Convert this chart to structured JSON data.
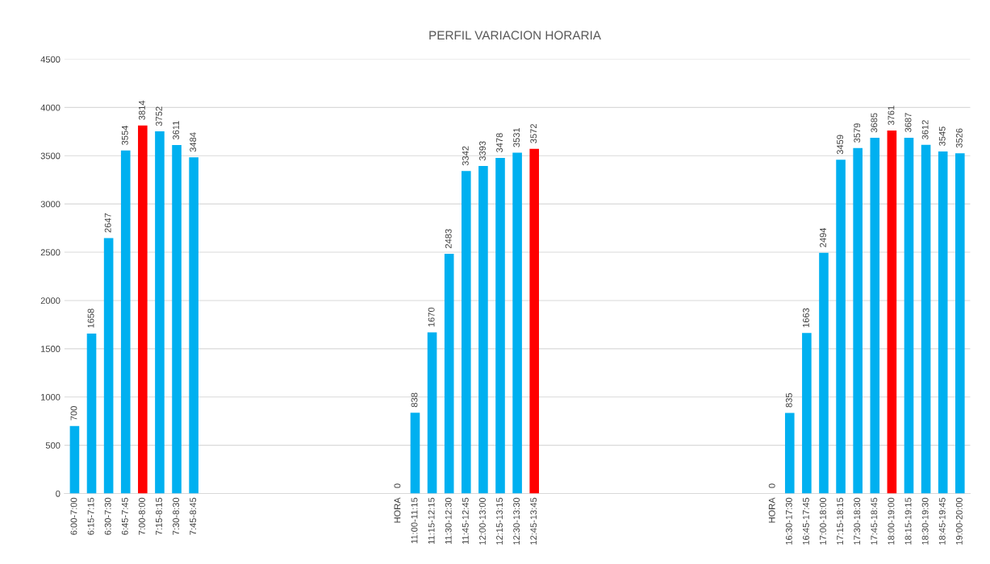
{
  "chart_data": {
    "type": "bar",
    "title": "PERFIL VARIACION HORARIA",
    "categories": [
      "6:00-7:00",
      "6:15-7:15",
      "6:30-7:30",
      "6:45-7:45",
      "7:00-8:00",
      "7:15-8:15",
      "7:30-8:30",
      "7:45-8:45",
      null,
      null,
      null,
      null,
      null,
      null,
      null,
      null,
      null,
      null,
      null,
      "HORA",
      "11:00-11:15",
      "11:15-12:15",
      "11:30-12:30",
      "11:45-12:45",
      "12:00-13:00",
      "12:15-13:15",
      "12:30-13:30",
      "12:45-13:45",
      null,
      null,
      null,
      null,
      null,
      null,
      null,
      null,
      null,
      null,
      null,
      null,
      null,
      "HORA",
      "16:30-17:30",
      "16:45-17:45",
      "17:00-18:00",
      "17:15-18:15",
      "17:30-18:30",
      "17:45-18:45",
      "18:00-19:00",
      "18:15-19:15",
      "18:30-19:30",
      "18:45-19:45",
      "19:00-20:00"
    ],
    "values": [
      700,
      1658,
      2647,
      3554,
      3814,
      3752,
      3611,
      3484,
      null,
      null,
      null,
      null,
      null,
      null,
      null,
      null,
      null,
      null,
      null,
      0,
      838,
      1670,
      2483,
      3342,
      3393,
      3478,
      3531,
      3572,
      null,
      null,
      null,
      null,
      null,
      null,
      null,
      null,
      null,
      null,
      null,
      null,
      null,
      0,
      835,
      1663,
      2494,
      3459,
      3579,
      3685,
      3761,
      3687,
      3612,
      3545,
      3526
    ],
    "colors": [
      "#00b0f0",
      "#00b0f0",
      "#00b0f0",
      "#00b0f0",
      "#ff0000",
      "#00b0f0",
      "#00b0f0",
      "#00b0f0",
      "#00b0f0",
      "#00b0f0",
      "#00b0f0",
      "#00b0f0",
      "#00b0f0",
      "#00b0f0",
      "#00b0f0",
      "#00b0f0",
      "#00b0f0",
      "#00b0f0",
      "#00b0f0",
      "#00b0f0",
      "#00b0f0",
      "#00b0f0",
      "#00b0f0",
      "#00b0f0",
      "#00b0f0",
      "#00b0f0",
      "#00b0f0",
      "#ff0000",
      "#00b0f0",
      "#00b0f0",
      "#00b0f0",
      "#00b0f0",
      "#00b0f0",
      "#00b0f0",
      "#00b0f0",
      "#00b0f0",
      "#00b0f0",
      "#00b0f0",
      "#00b0f0",
      "#00b0f0",
      "#00b0f0",
      "#00b0f0",
      "#00b0f0",
      "#00b0f0",
      "#00b0f0",
      "#00b0f0",
      "#00b0f0",
      "#00b0f0",
      "#ff0000",
      "#00b0f0",
      "#00b0f0",
      "#00b0f0",
      "#00b0f0"
    ],
    "ylim": [
      0,
      4500
    ],
    "yticks": [
      0,
      500,
      1000,
      1500,
      2000,
      2500,
      3000,
      3500,
      4000,
      4500
    ],
    "grid": "y",
    "data_labels": true
  }
}
